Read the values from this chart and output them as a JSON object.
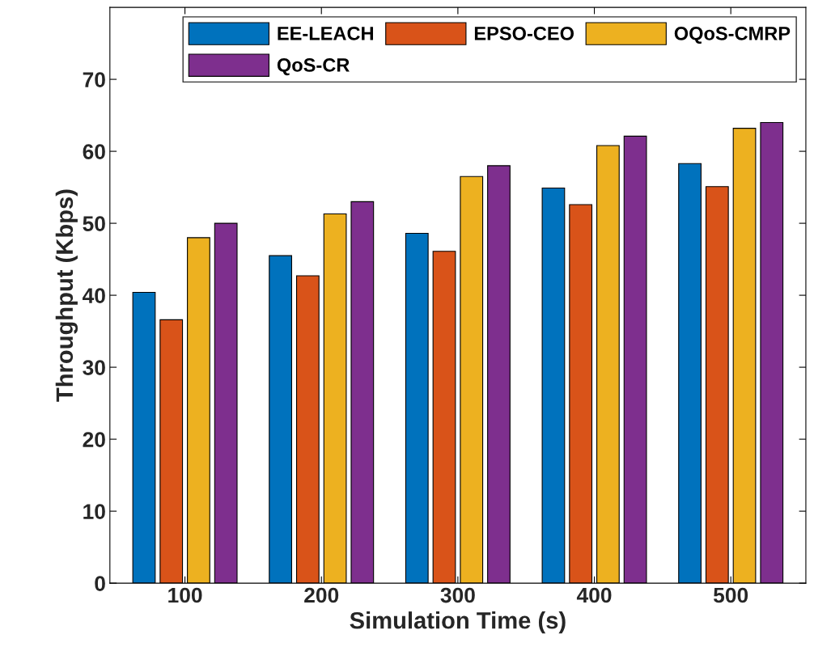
{
  "chart_data": {
    "type": "bar",
    "xlabel": "Simulation Time (s)",
    "ylabel": "Throughput (Kbps)",
    "categories": [
      "100",
      "200",
      "300",
      "400",
      "500"
    ],
    "series": [
      {
        "name": "EE-LEACH",
        "color": "#0072bd",
        "values": [
          40.4,
          45.5,
          48.6,
          54.9,
          58.3
        ]
      },
      {
        "name": "EPSO-CEO",
        "color": "#d95319",
        "values": [
          36.6,
          42.7,
          46.1,
          52.6,
          55.1
        ]
      },
      {
        "name": "OQoS-CMRP",
        "color": "#edb120",
        "values": [
          48.0,
          51.3,
          56.5,
          60.8,
          63.2
        ]
      },
      {
        "name": "QoS-CR",
        "color": "#7e2f8e",
        "values": [
          50.0,
          53.0,
          58.0,
          62.1,
          64.0
        ]
      }
    ],
    "ylim": [
      0,
      80
    ],
    "yticks": [
      0,
      10,
      20,
      30,
      40,
      50,
      60,
      70
    ],
    "grid": false,
    "legend": "top right"
  }
}
